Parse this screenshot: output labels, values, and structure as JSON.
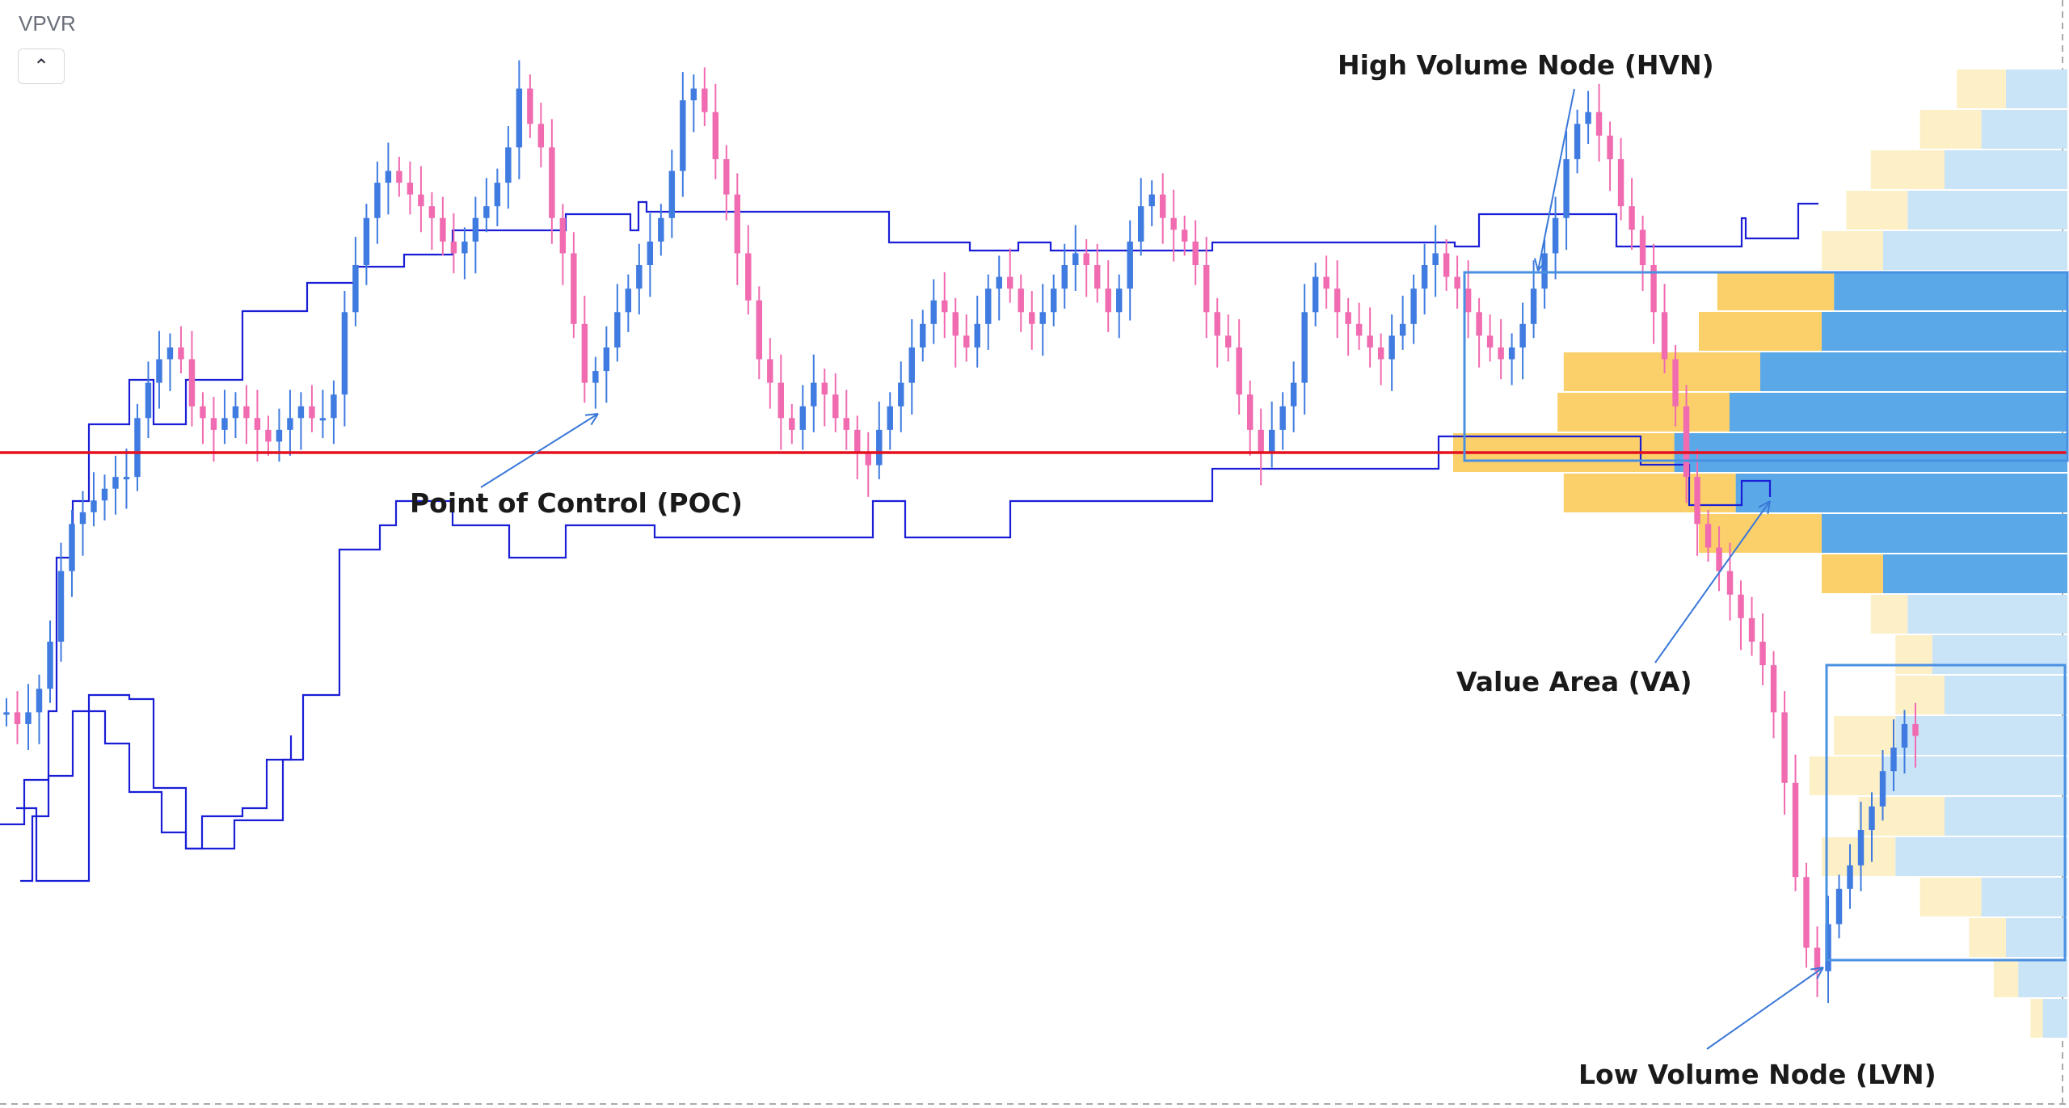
{
  "indicator": {
    "title": "VPVR",
    "collapse_icon": "chevron-up-icon"
  },
  "colors": {
    "candle_up": "#3f7be0",
    "candle_down": "#f06bb0",
    "va_up": "#5aa8e8",
    "va_down": "#fbd06a",
    "out_up": "#c9e3f7",
    "out_down": "#fdf0c7",
    "poc_line": "#e3101f",
    "step_line": "#1a1fd6",
    "box": "#4a90e2",
    "arrow": "#3a78d8",
    "grid_dash": "#999999"
  },
  "chart_data": [
    {
      "type": "candlestick",
      "description_series": "price",
      "values": [
        46,
        45,
        46,
        48,
        52,
        58,
        62,
        63,
        64,
        65,
        66,
        66,
        71,
        74,
        76,
        77,
        76,
        72,
        71,
        70,
        71,
        72,
        71,
        70,
        69,
        70,
        71,
        72,
        71,
        71,
        73,
        80,
        84,
        88,
        91,
        92,
        91,
        90,
        89,
        88,
        86,
        85,
        86,
        88,
        89,
        91,
        94,
        99,
        96,
        94,
        88,
        85,
        79,
        74,
        75,
        77,
        80,
        82,
        84,
        86,
        88,
        92,
        98,
        99,
        97,
        93,
        90,
        85,
        81,
        76,
        74,
        71,
        70,
        72,
        74,
        73,
        71,
        70,
        68,
        67,
        70,
        72,
        74,
        77,
        79,
        81,
        80,
        78,
        77,
        79,
        82,
        83,
        82,
        80,
        79,
        80,
        82,
        84,
        85,
        84,
        82,
        80,
        82,
        86,
        89,
        90,
        88,
        87,
        86,
        84,
        80,
        78,
        77,
        73,
        70,
        68,
        70,
        72,
        74,
        80,
        83,
        82,
        80,
        79,
        78,
        77,
        76,
        78,
        79,
        82,
        84,
        85,
        83,
        82,
        80,
        78,
        77,
        76,
        77,
        79,
        82,
        85,
        88,
        93,
        96,
        97,
        95,
        93,
        89,
        87,
        84,
        80,
        76,
        72,
        66,
        62,
        60,
        58,
        56,
        54,
        52,
        50,
        46,
        40,
        32,
        26,
        24,
        28,
        31,
        33,
        36,
        38,
        41,
        43,
        45,
        44
      ],
      "title": "",
      "xlabel": "",
      "ylabel": ""
    },
    {
      "type": "bar",
      "orientation": "horizontal",
      "description_series": "volume-profile",
      "series": [
        {
          "name": "",
          "values": [
            10,
            14,
            20,
            26,
            30,
            38,
            40,
            50,
            55,
            64,
            54,
            40,
            30,
            26,
            22,
            20,
            28,
            30,
            20,
            28,
            14,
            10,
            8,
            4
          ]
        },
        {
          "name": "",
          "values": [
            8,
            10,
            12,
            10,
            10,
            19,
            20,
            32,
            28,
            36,
            28,
            20,
            10,
            6,
            6,
            8,
            10,
            12,
            14,
            12,
            10,
            6,
            4,
            2
          ]
        }
      ],
      "value_area_rows": [
        5,
        12
      ]
    }
  ],
  "annotations": {
    "hvn": "High Volume Node (HVN)",
    "poc": "Point of Control (POC)",
    "va": "Value Area (VA)",
    "lvn": "Low Volume Node (LVN)"
  }
}
